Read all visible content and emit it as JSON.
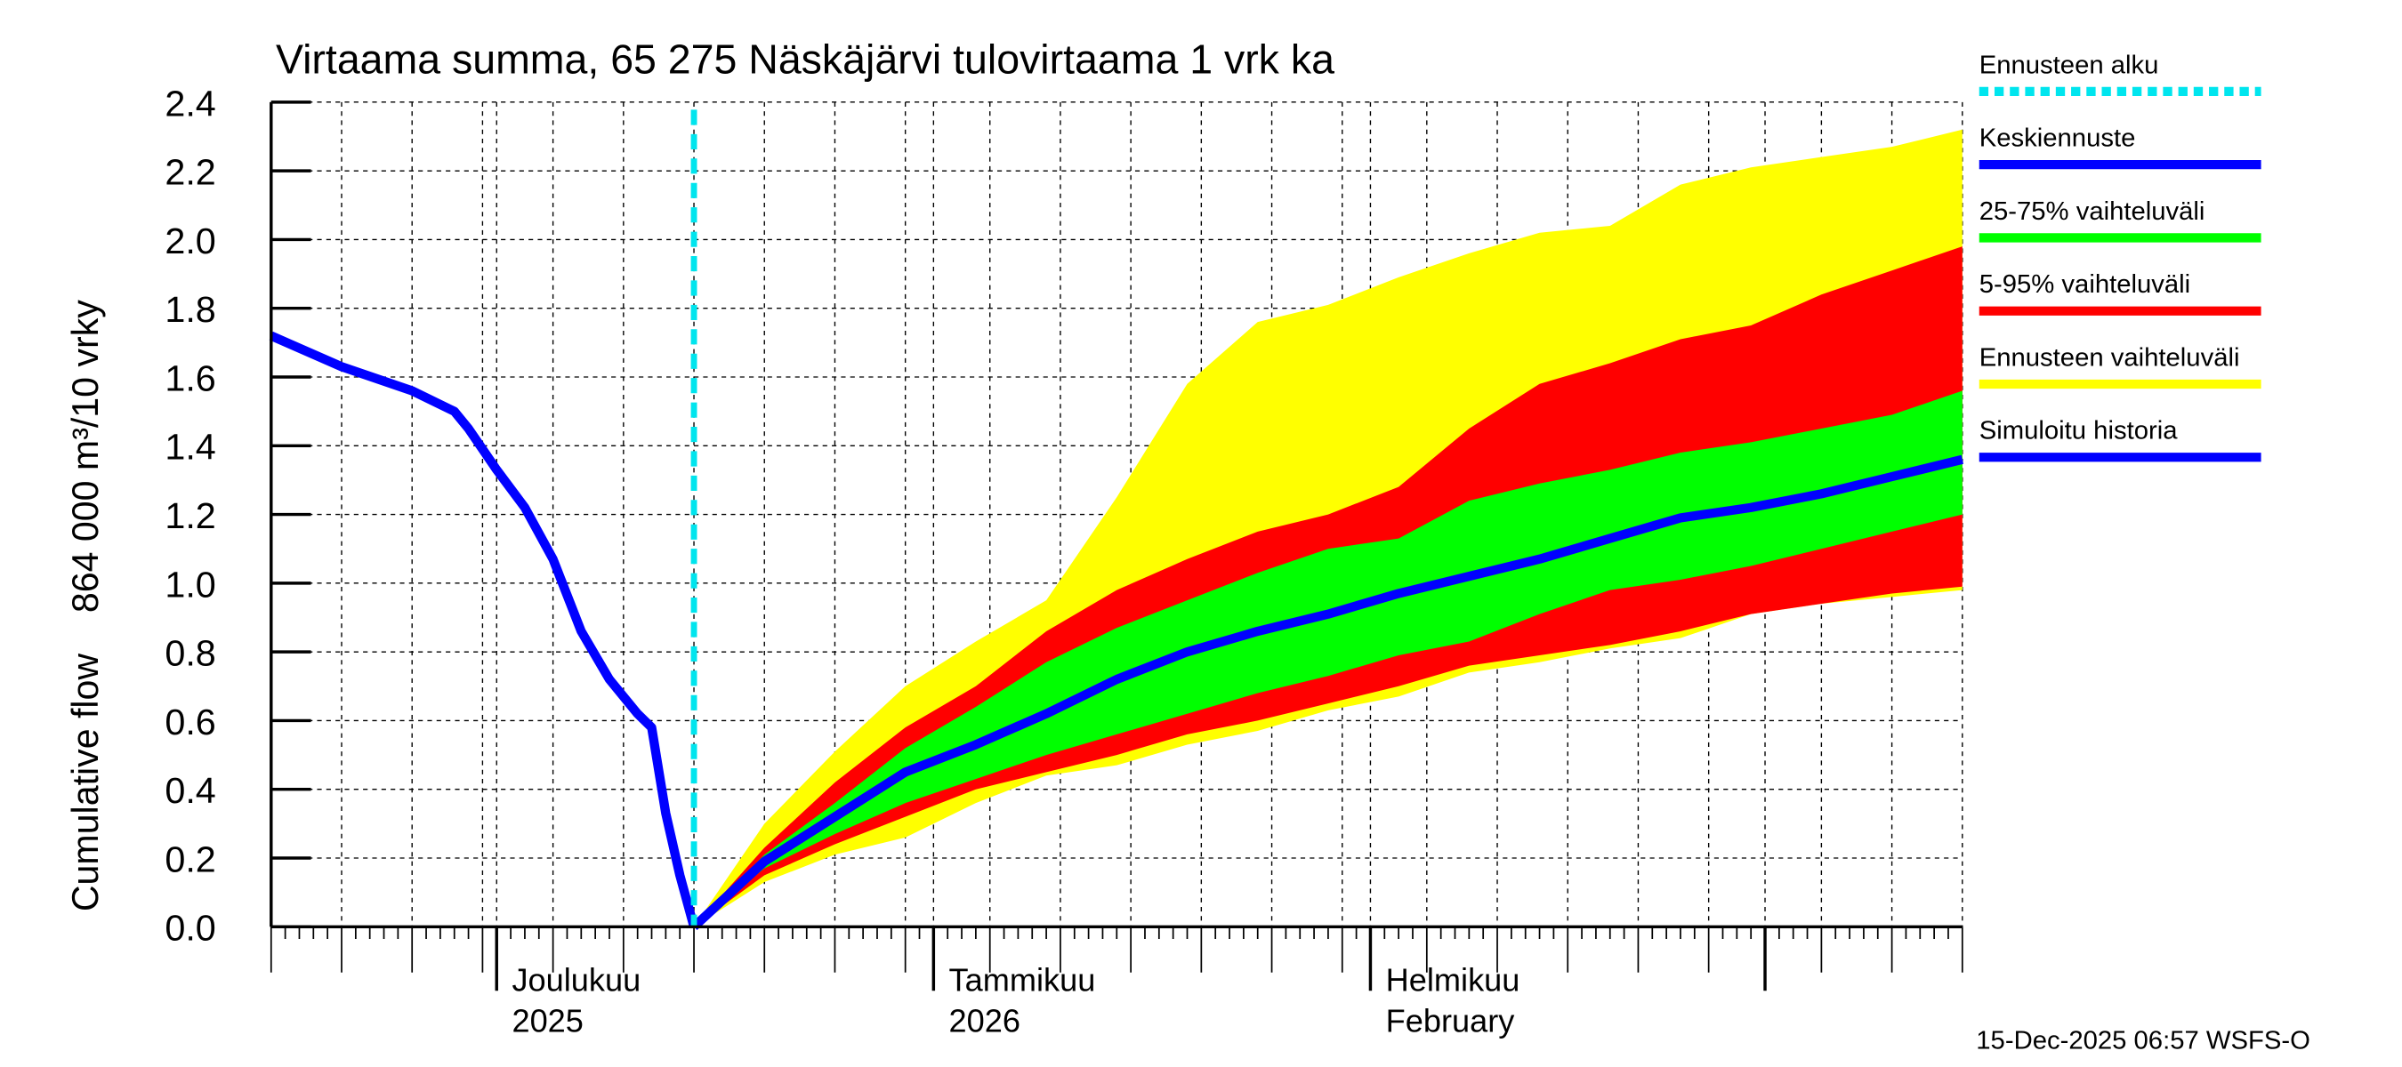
{
  "chart_data": {
    "type": "area",
    "title": "Virtaama summa, 65 275 Näskäjärvi tulovirtaama 1 vrk ka",
    "ylabel": "Cumulative flow    864 000 m³/10 vrky",
    "ylim": [
      0,
      2.4
    ],
    "xlim": [
      "2025-11-15",
      "2026-03-15"
    ],
    "yticks": [
      "0.0",
      "0.2",
      "0.4",
      "0.6",
      "0.8",
      "1.0",
      "1.2",
      "1.4",
      "1.6",
      "1.8",
      "2.0",
      "2.2",
      "2.4"
    ],
    "month_labels": [
      {
        "date": "2025-12-01",
        "line1": "Joulukuu",
        "line2": "2025"
      },
      {
        "date": "2026-01-01",
        "line1": "Tammikuu",
        "line2": "2026"
      },
      {
        "date": "2026-02-01",
        "line1": "Helmikuu",
        "line2": "February"
      }
    ],
    "grid": true,
    "forecast_start": "2025-12-15",
    "history": {
      "name": "Simuloitu historia",
      "x": [
        "2025-11-15",
        "2025-11-20",
        "2025-11-25",
        "2025-11-28",
        "2025-11-29",
        "2025-12-01",
        "2025-12-03",
        "2025-12-05",
        "2025-12-07",
        "2025-12-09",
        "2025-12-11",
        "2025-12-12",
        "2025-12-13",
        "2025-12-14",
        "2025-12-15"
      ],
      "y": [
        1.72,
        1.63,
        1.56,
        1.5,
        1.45,
        1.33,
        1.22,
        1.07,
        0.86,
        0.72,
        0.62,
        0.58,
        0.33,
        0.15,
        0.0
      ]
    },
    "forecast_x": [
      "2025-12-15",
      "2025-12-20",
      "2025-12-25",
      "2025-12-30",
      "2026-01-04",
      "2026-01-09",
      "2026-01-14",
      "2026-01-19",
      "2026-01-24",
      "2026-01-29",
      "2026-02-03",
      "2026-02-08",
      "2026-02-13",
      "2026-02-18",
      "2026-02-23",
      "2026-02-28",
      "2026-03-05",
      "2026-03-10",
      "2026-03-15"
    ],
    "series": [
      {
        "name": "Ennusteen vaihteluväli",
        "lower": [
          0,
          0.13,
          0.21,
          0.26,
          0.36,
          0.44,
          0.47,
          0.53,
          0.57,
          0.63,
          0.67,
          0.74,
          0.77,
          0.81,
          0.84,
          0.91,
          0.94,
          0.96,
          0.98
        ],
        "upper": [
          0,
          0.3,
          0.51,
          0.7,
          0.83,
          0.95,
          1.25,
          1.58,
          1.76,
          1.81,
          1.89,
          1.96,
          2.02,
          2.04,
          2.16,
          2.21,
          2.24,
          2.27,
          2.32
        ]
      },
      {
        "name": "5-95% vaihteluväli",
        "lower": [
          0,
          0.15,
          0.24,
          0.32,
          0.4,
          0.45,
          0.5,
          0.56,
          0.6,
          0.65,
          0.7,
          0.76,
          0.79,
          0.82,
          0.86,
          0.91,
          0.94,
          0.97,
          0.99
        ],
        "upper": [
          0,
          0.23,
          0.42,
          0.58,
          0.7,
          0.86,
          0.98,
          1.07,
          1.15,
          1.2,
          1.28,
          1.45,
          1.58,
          1.64,
          1.71,
          1.75,
          1.84,
          1.91,
          1.98
        ]
      },
      {
        "name": "25-75% vaihteluväli",
        "lower": [
          0,
          0.17,
          0.27,
          0.36,
          0.43,
          0.5,
          0.56,
          0.62,
          0.68,
          0.73,
          0.79,
          0.83,
          0.91,
          0.98,
          1.01,
          1.05,
          1.1,
          1.15,
          1.2
        ],
        "upper": [
          0,
          0.21,
          0.36,
          0.52,
          0.64,
          0.77,
          0.87,
          0.95,
          1.03,
          1.1,
          1.13,
          1.24,
          1.29,
          1.33,
          1.38,
          1.41,
          1.45,
          1.49,
          1.56
        ]
      },
      {
        "name": "Keskiennuste",
        "y": [
          0,
          0.19,
          0.32,
          0.45,
          0.53,
          0.62,
          0.72,
          0.8,
          0.86,
          0.91,
          0.97,
          1.02,
          1.07,
          1.13,
          1.19,
          1.22,
          1.26,
          1.31,
          1.36
        ]
      }
    ],
    "legend_position": "right",
    "legend": [
      {
        "label": "Ennusteen alku",
        "color": "#00ffff",
        "style": "dotted"
      },
      {
        "label": "Keskiennuste",
        "color": "#0000ff"
      },
      {
        "label": "25-75% vaihteluväli",
        "color": "#00ff00"
      },
      {
        "label": "5-95% vaihteluväli",
        "color": "#ff0000"
      },
      {
        "label": "Ennusteen vaihteluväli",
        "color": "#ffff00"
      },
      {
        "label": "Simuloitu historia",
        "color": "#0000ff"
      }
    ],
    "colors": {
      "yellow": "#ffff00",
      "red": "#ff0000",
      "green": "#00ff00",
      "blue": "#0000ff",
      "cyan": "#00e5ee"
    }
  },
  "footer": "15-Dec-2025 06:57 WSFS-O"
}
